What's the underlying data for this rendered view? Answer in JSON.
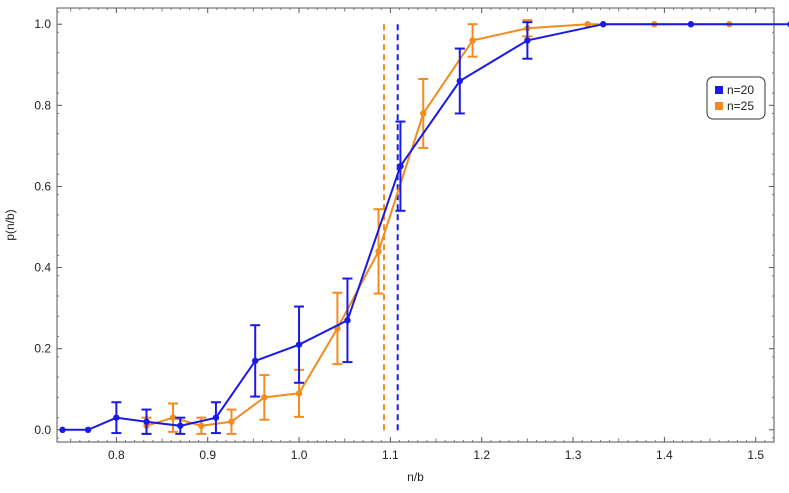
{
  "chart_data": {
    "type": "line",
    "title": "",
    "xlabel": "n/b",
    "ylabel": "p(n/b)",
    "xlim": [
      0.735,
      1.52
    ],
    "ylim": [
      -0.03,
      1.04
    ],
    "x_ticks": [
      "0.8",
      "0.9",
      "1.0",
      "1.1",
      "1.2",
      "1.3",
      "1.4",
      "1.5"
    ],
    "y_ticks": [
      "0.0",
      "0.2",
      "0.4",
      "0.6",
      "0.8",
      "1.0"
    ],
    "grid": false,
    "legend_position": "right",
    "series": [
      {
        "name": "n=20",
        "color": "#1a1ae6",
        "x": [
          0.741,
          0.769,
          0.8,
          0.833,
          0.87,
          0.909,
          0.952,
          1.0,
          1.053,
          1.111,
          1.176,
          1.25,
          1.333,
          1.429,
          1.538
        ],
        "y": [
          0.0,
          0.0,
          0.03,
          0.02,
          0.01,
          0.03,
          0.17,
          0.21,
          0.27,
          0.65,
          0.86,
          0.96,
          1.0,
          1.0,
          1.0
        ],
        "err": [
          0,
          0,
          0.038,
          0.03,
          0.02,
          0.038,
          0.088,
          0.094,
          0.103,
          0.11,
          0.08,
          0.045,
          0,
          0,
          0
        ],
        "threshold": 1.108
      },
      {
        "name": "n=25",
        "color": "#f28c1e",
        "x": [
          0.833,
          0.862,
          0.893,
          0.926,
          0.962,
          1.0,
          1.042,
          1.087,
          1.136,
          1.19,
          1.25,
          1.316,
          1.389,
          1.471
        ],
        "y": [
          0.01,
          0.03,
          0.01,
          0.02,
          0.08,
          0.09,
          0.25,
          0.44,
          0.78,
          0.96,
          0.99,
          1.0,
          1.0,
          1.0
        ],
        "err": [
          0.02,
          0.035,
          0.02,
          0.03,
          0.055,
          0.058,
          0.088,
          0.104,
          0.085,
          0.04,
          0.02,
          0,
          0,
          0
        ],
        "threshold": 1.093
      }
    ]
  }
}
